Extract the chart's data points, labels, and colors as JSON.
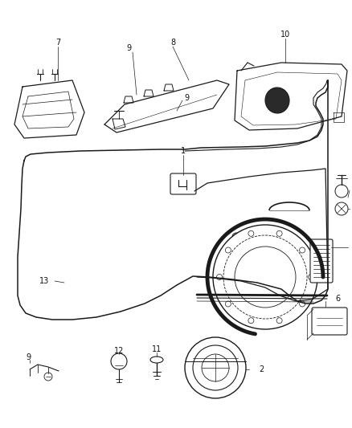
{
  "background_color": "#ffffff",
  "figsize": [
    4.38,
    5.33
  ],
  "dpi": 100,
  "line_color": "#1a1a1a",
  "label_fontsize": 7.0,
  "gray": "#555555"
}
